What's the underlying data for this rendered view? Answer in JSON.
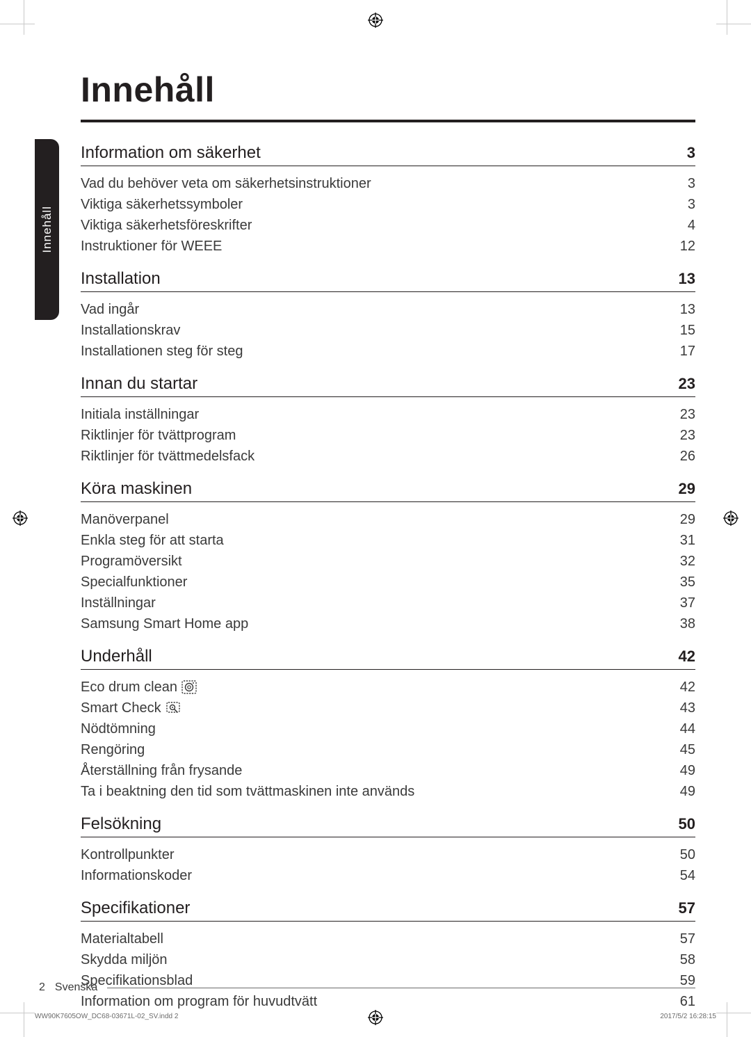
{
  "page": {
    "title": "Innehåll",
    "side_tab_label": "Innehåll",
    "footer_page_number": "2",
    "footer_language": "Svenska",
    "imprint_file": "WW90K7605OW_DC68-03671L-02_SV.indd   2",
    "imprint_datetime": "2017/5/2   16:28:15"
  },
  "colors": {
    "text": "#231f20",
    "muted": "#3a3a3a",
    "rule": "#231f20",
    "tab_bg": "#231f20",
    "tab_fg": "#ffffff",
    "crop": "#c9c9c9"
  },
  "typography": {
    "title_fontsize_pt": 38,
    "section_title_fontsize_pt": 18,
    "section_page_fontsize_pt": 17,
    "item_fontsize_pt": 15,
    "footer_fontsize_pt": 12
  },
  "toc": {
    "sections": [
      {
        "title": "Information om säkerhet",
        "page": "3",
        "items": [
          {
            "label": "Vad du behöver veta om säkerhetsinstruktioner",
            "page": "3"
          },
          {
            "label": "Viktiga säkerhetssymboler",
            "page": "3"
          },
          {
            "label": "Viktiga säkerhetsföreskrifter",
            "page": "4"
          },
          {
            "label": "Instruktioner för WEEE",
            "page": "12"
          }
        ]
      },
      {
        "title": "Installation",
        "page": "13",
        "items": [
          {
            "label": "Vad ingår",
            "page": "13"
          },
          {
            "label": "Installationskrav",
            "page": "15"
          },
          {
            "label": "Installationen steg för steg",
            "page": "17"
          }
        ]
      },
      {
        "title": "Innan du startar",
        "page": "23",
        "items": [
          {
            "label": "Initiala inställningar",
            "page": "23"
          },
          {
            "label": "Riktlinjer för tvättprogram",
            "page": "23"
          },
          {
            "label": "Riktlinjer för tvättmedelsfack",
            "page": "26"
          }
        ]
      },
      {
        "title": "Köra maskinen",
        "page": "29",
        "items": [
          {
            "label": "Manöverpanel",
            "page": "29"
          },
          {
            "label": "Enkla steg för att starta",
            "page": "31"
          },
          {
            "label": "Programöversikt",
            "page": "32"
          },
          {
            "label": "Specialfunktioner",
            "page": "35"
          },
          {
            "label": "Inställningar",
            "page": "37"
          },
          {
            "label": "Samsung Smart Home app",
            "page": "38"
          }
        ]
      },
      {
        "title": "Underhåll",
        "page": "42",
        "items": [
          {
            "label": "Eco drum clean",
            "page": "42",
            "icon": "drum-icon"
          },
          {
            "label": "Smart Check",
            "page": "43",
            "icon": "smart-check-icon"
          },
          {
            "label": "Nödtömning",
            "page": "44"
          },
          {
            "label": "Rengöring",
            "page": "45"
          },
          {
            "label": "Återställning från frysande",
            "page": "49"
          },
          {
            "label": "Ta i beaktning den tid som tvättmaskinen inte används",
            "page": "49"
          }
        ]
      },
      {
        "title": "Felsökning",
        "page": "50",
        "items": [
          {
            "label": "Kontrollpunkter",
            "page": "50"
          },
          {
            "label": "Informationskoder",
            "page": "54"
          }
        ]
      },
      {
        "title": "Specifikationer",
        "page": "57",
        "items": [
          {
            "label": "Materialtabell",
            "page": "57"
          },
          {
            "label": "Skydda miljön",
            "page": "58"
          },
          {
            "label": "Specifikationsblad",
            "page": "59"
          },
          {
            "label": "Information om program för huvudtvätt",
            "page": "61"
          }
        ]
      }
    ]
  }
}
